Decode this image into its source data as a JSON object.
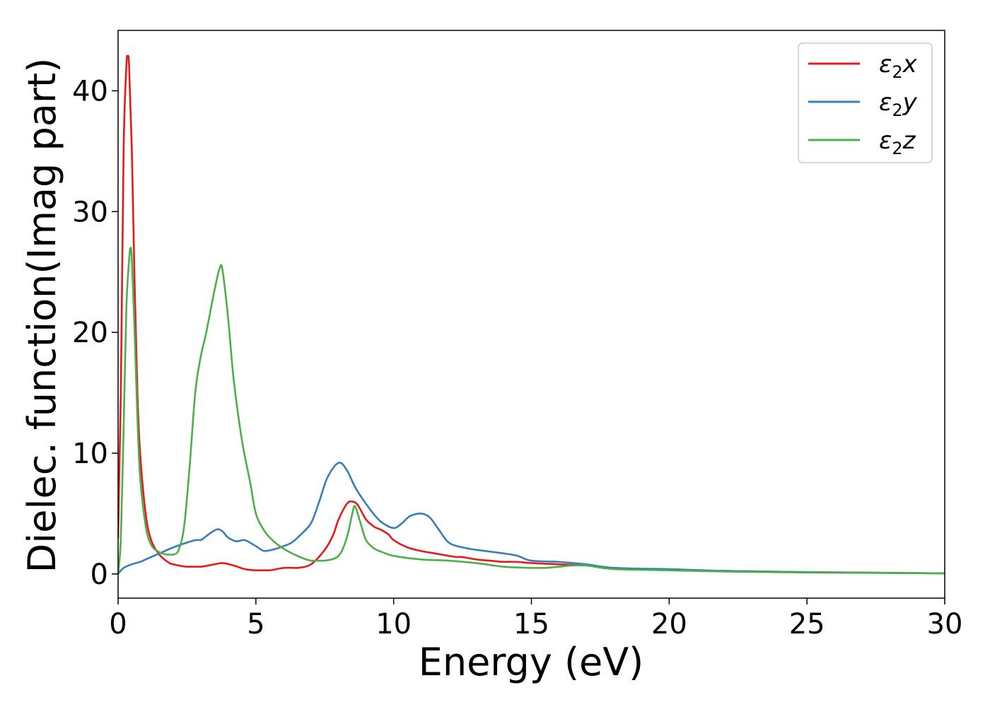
{
  "chart_data": {
    "type": "line",
    "title": "",
    "xlabel": "Energy (eV)",
    "ylabel": "Dielec. function(Imag part)",
    "xlim": [
      0,
      30
    ],
    "ylim": [
      -2,
      45
    ],
    "xticks": [
      0,
      5,
      10,
      15,
      20,
      25,
      30
    ],
    "yticks": [
      0,
      10,
      20,
      30,
      40
    ],
    "grid": false,
    "legend_position": "top-right",
    "series": [
      {
        "name": "ε₂x",
        "legend": {
          "main": "ε",
          "sub": "2",
          "tail": "x"
        },
        "color": "#e41a1c",
        "x": [
          0,
          0.1,
          0.2,
          0.3,
          0.35,
          0.4,
          0.5,
          0.6,
          0.7,
          0.8,
          1.0,
          1.2,
          1.5,
          1.8,
          2.0,
          2.5,
          3.0,
          3.5,
          3.8,
          4.2,
          4.6,
          5.0,
          5.5,
          6.0,
          6.5,
          7.0,
          7.5,
          7.8,
          8.0,
          8.3,
          8.5,
          8.7,
          9.0,
          9.3,
          9.5,
          9.8,
          10.0,
          10.5,
          11.0,
          11.5,
          12.0,
          12.3,
          12.5,
          13.0,
          13.5,
          14.0,
          14.5,
          15.0,
          16.0,
          17.0,
          18.0,
          20.0,
          22.0,
          25.0,
          30.0
        ],
        "y": [
          3.0,
          15.0,
          35.0,
          42.0,
          42.8,
          42.0,
          35.0,
          24.0,
          15.0,
          10.0,
          5.0,
          2.8,
          1.6,
          1.0,
          0.8,
          0.6,
          0.6,
          0.8,
          0.9,
          0.7,
          0.4,
          0.3,
          0.3,
          0.5,
          0.5,
          0.8,
          2.0,
          3.2,
          4.5,
          5.8,
          6.0,
          5.7,
          4.5,
          3.9,
          3.7,
          3.3,
          2.8,
          2.2,
          1.9,
          1.7,
          1.5,
          1.4,
          1.4,
          1.2,
          1.1,
          1.0,
          1.0,
          0.9,
          0.8,
          0.7,
          0.5,
          0.35,
          0.25,
          0.15,
          0.05
        ]
      },
      {
        "name": "ε₂y",
        "legend": {
          "main": "ε",
          "sub": "2",
          "tail": "y"
        },
        "color": "#377eb8",
        "x": [
          0,
          0.2,
          0.5,
          0.8,
          1.0,
          1.3,
          1.6,
          2.0,
          2.5,
          2.8,
          3.0,
          3.3,
          3.6,
          3.8,
          4.0,
          4.3,
          4.6,
          5.0,
          5.3,
          5.6,
          6.0,
          6.3,
          6.6,
          7.0,
          7.3,
          7.6,
          8.0,
          8.3,
          8.6,
          9.0,
          9.5,
          10.0,
          10.3,
          10.6,
          11.0,
          11.3,
          11.6,
          12.0,
          12.5,
          13.0,
          14.0,
          14.5,
          15.0,
          16.0,
          17.0,
          18.0,
          20.0,
          22.0,
          25.0,
          30.0
        ],
        "y": [
          0.0,
          0.5,
          0.8,
          1.0,
          1.2,
          1.5,
          1.8,
          2.2,
          2.6,
          2.8,
          2.8,
          3.3,
          3.7,
          3.5,
          3.0,
          2.7,
          2.8,
          2.3,
          1.9,
          2.0,
          2.3,
          2.6,
          3.2,
          4.2,
          6.0,
          8.0,
          9.2,
          8.6,
          7.2,
          5.8,
          4.4,
          3.8,
          4.2,
          4.8,
          5.0,
          4.7,
          3.8,
          2.6,
          2.2,
          2.0,
          1.7,
          1.5,
          1.1,
          1.0,
          0.8,
          0.5,
          0.4,
          0.25,
          0.15,
          0.05
        ]
      },
      {
        "name": "ε₂z",
        "legend": {
          "main": "ε",
          "sub": "2",
          "tail": "z"
        },
        "color": "#4daf4a",
        "x": [
          0,
          0.1,
          0.2,
          0.3,
          0.4,
          0.45,
          0.5,
          0.6,
          0.7,
          0.8,
          1.0,
          1.2,
          1.5,
          1.8,
          2.0,
          2.2,
          2.4,
          2.6,
          2.8,
          3.0,
          3.2,
          3.5,
          3.7,
          3.8,
          4.0,
          4.2,
          4.5,
          4.8,
          5.0,
          5.3,
          5.6,
          6.0,
          6.5,
          7.0,
          7.5,
          8.0,
          8.3,
          8.5,
          8.6,
          8.8,
          9.0,
          9.3,
          9.6,
          10.0,
          11.0,
          12.0,
          13.0,
          14.0,
          15.0,
          15.5,
          16.0,
          16.5,
          17.0,
          18.0,
          20.0,
          22.0,
          25.0,
          30.0
        ],
        "y": [
          0.0,
          3.0,
          12.0,
          22.0,
          26.0,
          27.0,
          26.0,
          20.0,
          13.0,
          8.0,
          4.0,
          2.4,
          1.8,
          1.6,
          1.6,
          2.0,
          4.0,
          9.0,
          15.0,
          18.0,
          20.0,
          23.5,
          25.4,
          25.0,
          21.0,
          16.0,
          11.0,
          7.5,
          5.0,
          3.6,
          2.8,
          2.1,
          1.5,
          1.1,
          1.1,
          1.5,
          3.0,
          5.0,
          5.6,
          4.2,
          2.8,
          2.1,
          1.8,
          1.5,
          1.2,
          1.1,
          0.9,
          0.6,
          0.5,
          0.5,
          0.6,
          0.7,
          0.7,
          0.4,
          0.3,
          0.2,
          0.12,
          0.05
        ]
      }
    ]
  }
}
